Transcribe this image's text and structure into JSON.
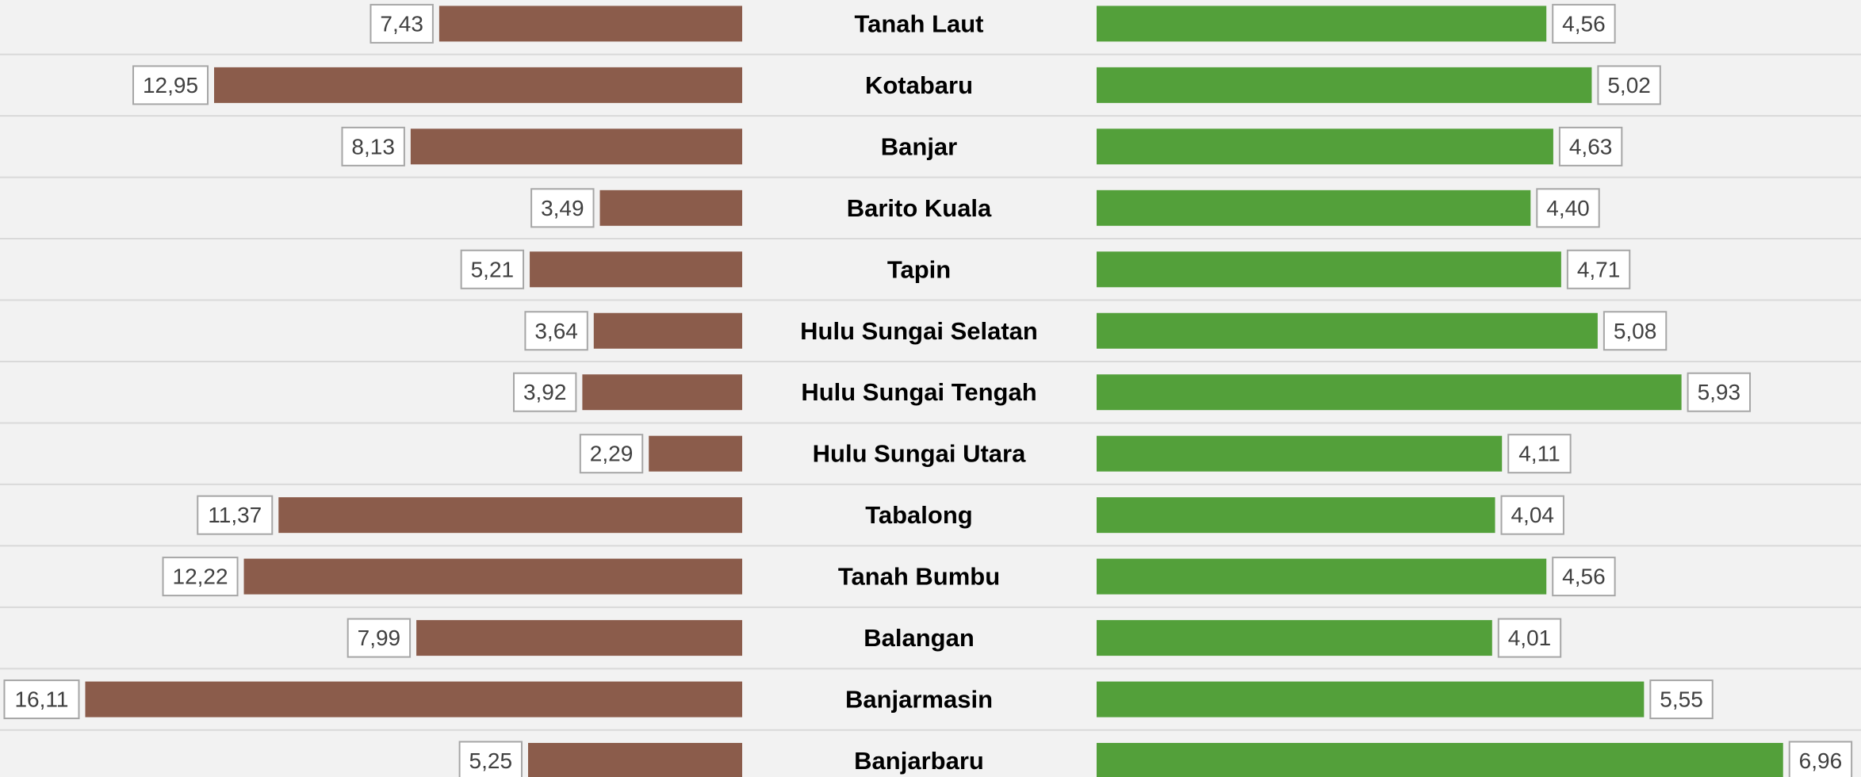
{
  "chart_data": {
    "type": "bar",
    "categories": [
      "Tanah Laut",
      "Kotabaru",
      "Banjar",
      "Barito Kuala",
      "Tapin",
      "Hulu Sungai Selatan",
      "Hulu Sungai Tengah",
      "Hulu Sungai Utara",
      "Tabalong",
      "Tanah Bumbu",
      "Balangan",
      "Banjarmasin",
      "Banjarbaru"
    ],
    "series": [
      {
        "color": "#8b5c4b",
        "xlim": [
          0,
          18.2
        ],
        "values": [
          7.43,
          12.95,
          8.13,
          3.49,
          5.21,
          3.64,
          3.92,
          2.29,
          11.37,
          12.22,
          7.99,
          16.11,
          5.25
        ],
        "value_labels": [
          "7,43",
          "12,95",
          "8,13",
          "3,49",
          "5,21",
          "3,64",
          "3,92",
          "2,29",
          "11,37",
          "12,22",
          "7,99",
          "16,11",
          "5,25"
        ]
      },
      {
        "color": "#53a03a",
        "xlim": [
          0,
          7.75
        ],
        "values": [
          4.56,
          5.02,
          4.63,
          4.4,
          4.71,
          5.08,
          5.93,
          4.11,
          4.04,
          4.56,
          4.01,
          5.55,
          6.96
        ],
        "value_labels": [
          "4,56",
          "5,02",
          "4,63",
          "4,40",
          "4,71",
          "5,08",
          "5,93",
          "4,11",
          "4,04",
          "4,56",
          "4,01",
          "5,55",
          "6,96"
        ]
      }
    ]
  }
}
